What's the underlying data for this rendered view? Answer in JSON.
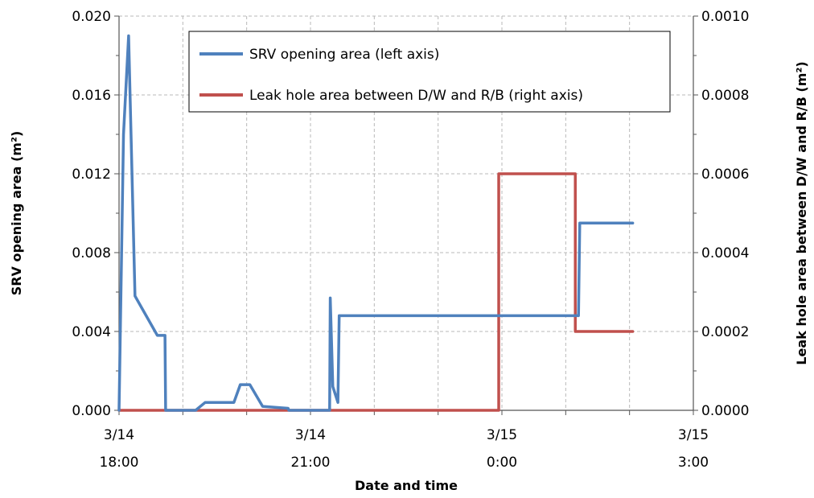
{
  "chart_data": {
    "type": "line",
    "title": "",
    "xlabel": "Date and time",
    "ylabel_left": "SRV opening area (m²)",
    "ylabel_right": "Leak hole area between D/W and R/B (m²)",
    "xlim": [
      0,
      9
    ],
    "ylim_left": [
      0,
      0.02
    ],
    "ylim_right": [
      0,
      0.001
    ],
    "x_ticks": [
      {
        "x": 0,
        "line1": "3/14",
        "line2": "18:00"
      },
      {
        "x": 3,
        "line1": "3/14",
        "line2": "21:00"
      },
      {
        "x": 6,
        "line1": "3/15",
        "line2": "0:00"
      },
      {
        "x": 9,
        "line1": "3/15",
        "line2": "3:00"
      }
    ],
    "y_ticks_left": [
      "0.000",
      "0.004",
      "0.008",
      "0.012",
      "0.016",
      "0.020"
    ],
    "y_ticks_right": [
      "0.0000",
      "0.0002",
      "0.0004",
      "0.0006",
      "0.0008",
      "0.0010"
    ],
    "grid": true,
    "legend_position": "top-center",
    "series": [
      {
        "name": "SRV opening area (left axis)",
        "axis": "left",
        "color": "#4F81BD",
        "points": [
          [
            0.0,
            0.0
          ],
          [
            0.07,
            0.014
          ],
          [
            0.15,
            0.019
          ],
          [
            0.25,
            0.0058
          ],
          [
            0.6,
            0.0038
          ],
          [
            0.72,
            0.0038
          ],
          [
            0.73,
            0.0
          ],
          [
            1.2,
            0.0
          ],
          [
            1.35,
            0.0004
          ],
          [
            1.8,
            0.0004
          ],
          [
            1.9,
            0.0013
          ],
          [
            2.05,
            0.0013
          ],
          [
            2.25,
            0.0002
          ],
          [
            2.65,
            0.0001
          ],
          [
            2.66,
            0.0
          ],
          [
            3.3,
            0.0
          ],
          [
            3.31,
            0.0057
          ],
          [
            3.35,
            0.0012
          ],
          [
            3.43,
            0.0004
          ],
          [
            3.45,
            0.0048
          ],
          [
            7.2,
            0.0048
          ],
          [
            7.22,
            0.0095
          ],
          [
            8.05,
            0.0095
          ]
        ]
      },
      {
        "name": "Leak hole area between D/W and R/B (right axis)",
        "axis": "right",
        "color": "#C0504D",
        "points": [
          [
            0.0,
            0.0
          ],
          [
            5.95,
            0.0
          ],
          [
            5.95,
            0.0006
          ],
          [
            7.15,
            0.0006
          ],
          [
            7.15,
            0.0002
          ],
          [
            8.05,
            0.0002
          ]
        ]
      }
    ]
  }
}
